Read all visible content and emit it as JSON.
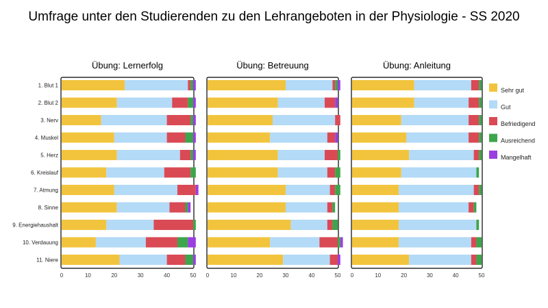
{
  "title": "Umfrage unter den Studierenden zu den Lehrangeboten in der Physiologie - SS 2020",
  "chart_data": {
    "type": "bar",
    "orientation": "horizontal",
    "stacked": true,
    "title": "Umfrage unter den Studierenden zu den Lehrangeboten in der Physiologie - SS 2020",
    "xlim": [
      0,
      50
    ],
    "ticks": [
      0,
      10,
      20,
      30,
      40,
      50
    ],
    "legend_position": "right",
    "categories": [
      "1. Blut 1",
      "2. Blut 2",
      "3. Nerv",
      "4. Muskel",
      "5. Herz",
      "6. Kreislauf",
      "7. Atmung",
      "8. Sinne",
      "9. Energiehaushalt",
      "10. Verdauung",
      "11. Niere"
    ],
    "series_meta": [
      {
        "name": "Sehr gut",
        "color": "#F2C43E"
      },
      {
        "name": "Gut",
        "color": "#B3DAF7"
      },
      {
        "name": "Befriedigend",
        "color": "#D94A55"
      },
      {
        "name": "Ausreichend",
        "color": "#3DA54B"
      },
      {
        "name": "Mangelhaft",
        "color": "#9B3FE0"
      }
    ],
    "panels": [
      {
        "title": "Übung: Lernerfolg",
        "series": [
          {
            "name": "Sehr gut",
            "values": [
              24,
              21,
              15,
              20,
              21,
              17,
              20,
              21,
              17,
              13,
              22
            ]
          },
          {
            "name": "Gut",
            "values": [
              24,
              21,
              25,
              20,
              24,
              22,
              24,
              20,
              18,
              19,
              18
            ]
          },
          {
            "name": "Befriedigend",
            "values": [
              1,
              6,
              9,
              7,
              4,
              10,
              7,
              6,
              15,
              12,
              7
            ]
          },
          {
            "name": "Ausreichend",
            "values": [
              1,
              2,
              1,
              3,
              1,
              2,
              0,
              1,
              1,
              4,
              3
            ]
          },
          {
            "name": "Mangelhaft",
            "values": [
              1,
              1,
              1,
              1,
              1,
              0,
              1,
              1,
              0,
              3,
              1
            ]
          }
        ]
      },
      {
        "title": "Übung: Betreuung",
        "series": [
          {
            "name": "Sehr gut",
            "values": [
              30,
              27,
              25,
              24,
              27,
              27,
              30,
              30,
              32,
              24,
              29
            ]
          },
          {
            "name": "Gut",
            "values": [
              18,
              18,
              24,
              22,
              18,
              19,
              17,
              16,
              14,
              19,
              18
            ]
          },
          {
            "name": "Befriedigend",
            "values": [
              1,
              4,
              2,
              3,
              5,
              3,
              2,
              2,
              2,
              7,
              3
            ]
          },
          {
            "name": "Ausreichend",
            "values": [
              1,
              0,
              0,
              0,
              1,
              2,
              2,
              1,
              2,
              1,
              0
            ]
          },
          {
            "name": "Mangelhaft",
            "values": [
              1,
              1,
              0,
              1,
              0,
              0,
              0,
              0,
              0,
              1,
              1
            ]
          }
        ]
      },
      {
        "title": "Übung: Anleitung",
        "series": [
          {
            "name": "Sehr gut",
            "values": [
              24,
              24,
              19,
              21,
              22,
              19,
              18,
              18,
              18,
              18,
              22
            ]
          },
          {
            "name": "Gut",
            "values": [
              22,
              21,
              26,
              24,
              25,
              29,
              29,
              27,
              30,
              28,
              24
            ]
          },
          {
            "name": "Befriedigend",
            "values": [
              3,
              4,
              4,
              4,
              2,
              0,
              2,
              2,
              0,
              2,
              2
            ]
          },
          {
            "name": "Ausreichend",
            "values": [
              1,
              1,
              1,
              1,
              1,
              1,
              1,
              1,
              1,
              2,
              2
            ]
          },
          {
            "name": "Mangelhaft",
            "values": [
              0,
              0,
              0,
              0,
              0,
              0,
              0,
              0,
              0,
              0,
              0
            ]
          }
        ]
      }
    ]
  }
}
